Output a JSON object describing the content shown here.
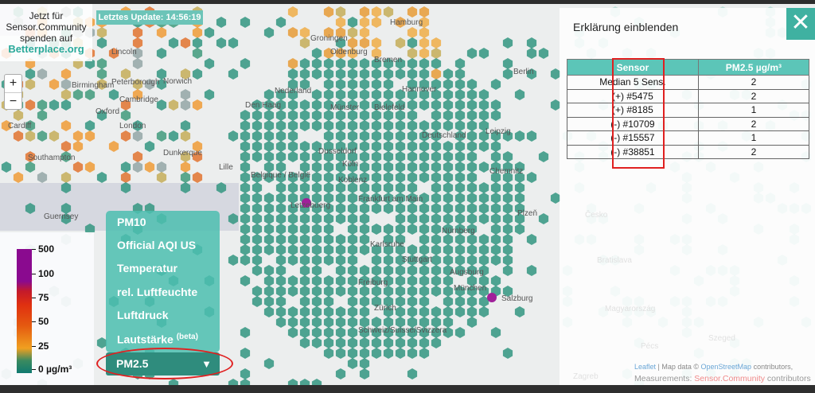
{
  "info_box": {
    "line1": "Jetzt für",
    "line2": "Sensor.Community",
    "line3": "spenden auf",
    "link": "Betterplace.org"
  },
  "update_badge": "Letztes Update: 14:56:19",
  "zoom": {
    "in": "+",
    "out": "−"
  },
  "map_labels": [
    "Hamburg",
    "Groningen",
    "Bremen",
    "Oldenburg",
    "Den Haag",
    "Nederland",
    "Hannover",
    "Münster",
    "Bielefeld",
    "Berlin",
    "Deutschland",
    "Leipzig",
    "Dusseldorf",
    "Köln",
    "Belgique / België",
    "Lille",
    "Koblenz",
    "Chemnitz",
    "Frankfurt am Main",
    "Letzebuerg",
    "Nürnberg",
    "Karlsruhe",
    "Stuttgart",
    "Augsburg",
    "München",
    "Freiburg",
    "Zürich",
    "Schweiz/Suisse/Svizzera",
    "Salzburg",
    "Birmingham",
    "London",
    "Norwich",
    "Cambridge",
    "Oxford",
    "Cardiff",
    "Southampton",
    "Dunkerque",
    "Guernsey",
    "Česko",
    "Plzeň",
    "Bratislava",
    "Magyarország",
    "Zagreb",
    "Pécs",
    "Szeged",
    "Lincoln",
    "Peterborough"
  ],
  "legend": {
    "ticks": [
      "500",
      "100",
      "75",
      "50",
      "25",
      "0 µg/m³"
    ],
    "colors": [
      "#8a0a8f",
      "#c41a2a",
      "#e03010",
      "#e55a10",
      "#f0a020",
      "#107a70"
    ]
  },
  "menu": {
    "items": [
      "PM10",
      "Official AQI US",
      "Temperatur",
      "rel. Luftfeuchte",
      "Luftdruck",
      "Lautstärke"
    ],
    "beta": "(beta)",
    "selected": "PM2.5",
    "arrow": "▼"
  },
  "panel": {
    "title": "Erklärung einblenden",
    "close": "✕",
    "headers": [
      "Sensor",
      "PM2.5 µg/m³"
    ],
    "rows": [
      [
        "Median 5 Sens.",
        "2"
      ],
      [
        "(+) #5475",
        "2"
      ],
      [
        "(+) #8185",
        "1"
      ],
      [
        "(-) #10709",
        "2"
      ],
      [
        "(-) #15557",
        "1"
      ],
      [
        "(-) #38851",
        "2"
      ]
    ]
  },
  "attribution": {
    "leaflet": "Leaflet",
    "mapdata": " | Map data © ",
    "osm": "OpenStreetMap",
    "contrib": " contributors,",
    "measure": "Measurements: ",
    "sc": "Sensor.Community",
    "contrib2": " contributors"
  },
  "colors": {
    "accent": "#5cc5b8",
    "hex_teal": "#3d9a86",
    "highlight": "#e02020"
  }
}
